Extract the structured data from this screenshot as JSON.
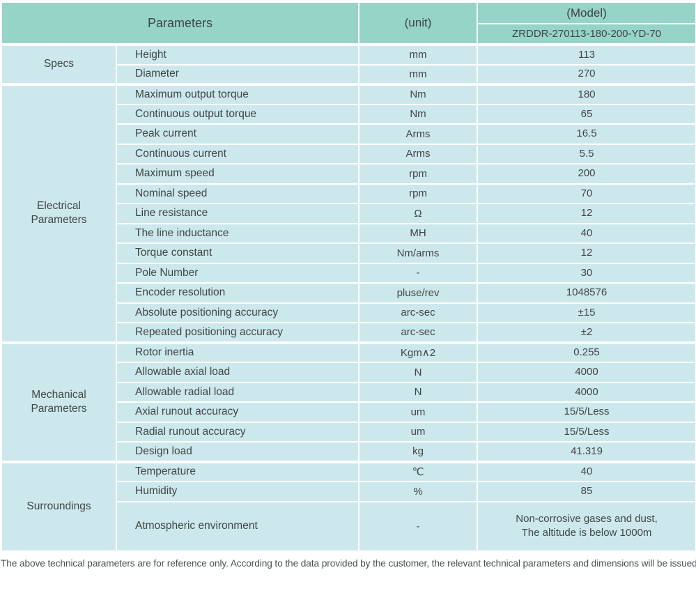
{
  "header": {
    "parameters_label": "Parameters",
    "unit_label": "(unit)",
    "model_label": "(Model)",
    "model_value": "ZRDDR-270113-180-200-YD-70"
  },
  "sections": [
    {
      "group": "Specs",
      "rows": [
        {
          "parameter": "Height",
          "unit": "mm",
          "value": "113"
        },
        {
          "parameter": "Diameter",
          "unit": "mm",
          "value": "270"
        }
      ]
    },
    {
      "group": "Electrical\nParameters",
      "rows": [
        {
          "parameter": "Maximum output torque",
          "unit": "Nm",
          "value": "180"
        },
        {
          "parameter": "Continuous output torque",
          "unit": "Nm",
          "value": "65"
        },
        {
          "parameter": "Peak current",
          "unit": "Arms",
          "value": "16.5"
        },
        {
          "parameter": "Continuous current",
          "unit": "Arms",
          "value": "5.5"
        },
        {
          "parameter": "Maximum speed",
          "unit": "rpm",
          "value": "200"
        },
        {
          "parameter": "Nominal speed",
          "unit": "rpm",
          "value": "70"
        },
        {
          "parameter": "Line resistance",
          "unit": "Ω",
          "value": "12"
        },
        {
          "parameter": "The line inductance",
          "unit": "MH",
          "value": "40"
        },
        {
          "parameter": "Torque constant",
          "unit": "Nm/arms",
          "value": "12"
        },
        {
          "parameter": "Pole Number",
          "unit": "-",
          "value": "30"
        },
        {
          "parameter": "Encoder resolution",
          "unit": "pluse/rev",
          "value": "1048576"
        },
        {
          "parameter": "Absolute positioning accuracy",
          "unit": "arc-sec",
          "value": "±15"
        },
        {
          "parameter": "Repeated positioning accuracy",
          "unit": "arc-sec",
          "value": "±2"
        }
      ]
    },
    {
      "group": "Mechanical\nParameters",
      "rows": [
        {
          "parameter": "Rotor inertia",
          "unit": "Kgm∧2",
          "value": "0.255"
        },
        {
          "parameter": "Allowable axial load",
          "unit": "N",
          "value": "4000"
        },
        {
          "parameter": "Allowable radial load",
          "unit": "N",
          "value": "4000"
        },
        {
          "parameter": "Axial runout accuracy",
          "unit": "um",
          "value": "15/5/Less"
        },
        {
          "parameter": "Radial runout accuracy",
          "unit": "um",
          "value": "15/5/Less"
        },
        {
          "parameter": "Design load",
          "unit": "kg",
          "value": "41.319"
        }
      ]
    },
    {
      "group": "Surroundings",
      "rows": [
        {
          "parameter": "Temperature",
          "unit": "℃",
          "value": "40"
        },
        {
          "parameter": "Humidity",
          "unit": "%",
          "value": "85"
        },
        {
          "parameter": "Atmospheric environment",
          "unit": "-",
          "value": "Non-corrosive gases and dust,\nThe altitude is below 1000m",
          "tall": true
        }
      ]
    }
  ],
  "footer": {
    "note": "The above technical parameters are for reference only. According to the data provided by the customer, the relevant technical parameters and dimensions will be issued."
  },
  "colors": {
    "header_bg": "#97d4c8",
    "cell_bg": "#cde8ec",
    "border": "#ffffff",
    "text": "#3f4547"
  }
}
